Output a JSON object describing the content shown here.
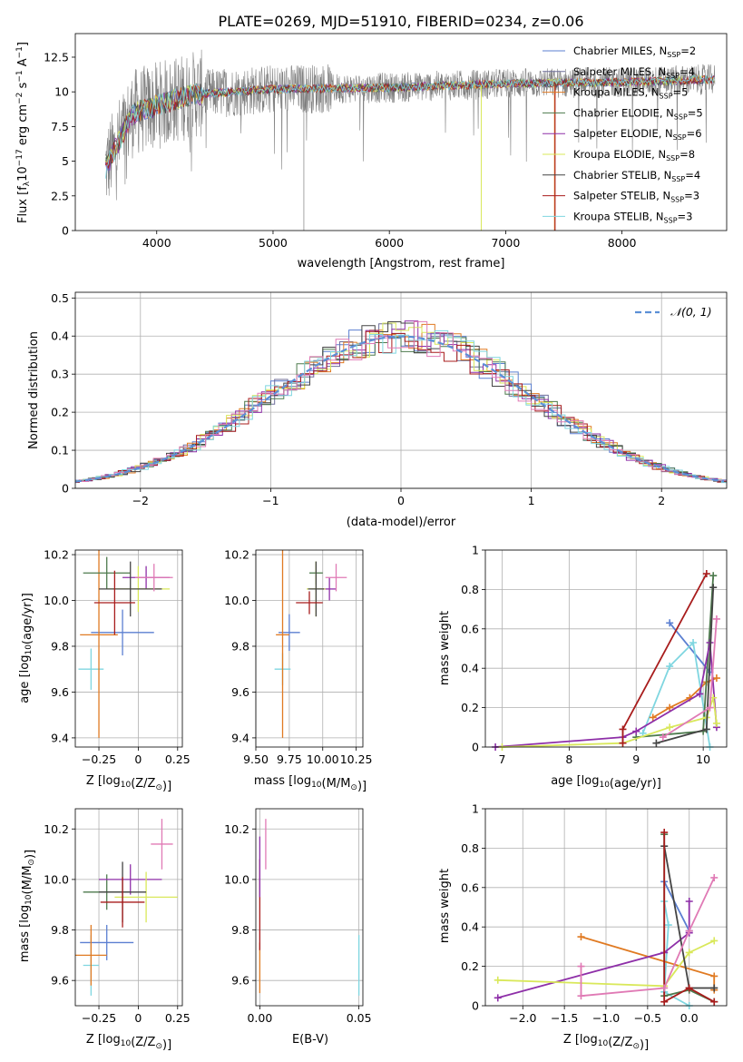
{
  "figure_title": "PLATE=0269, MJD=51910, FIBERID=0234, z=0.06",
  "model_colors": {
    "Chabrier MILES": "#5b7fd1",
    "Salpeter MILES": "#6e6e9a",
    "Kroupa MILES": "#e07a22",
    "Chabrier ELODIE": "#4d7a4d",
    "Salpeter ELODIE": "#8e2fa8",
    "Kroupa ELODIE": "#d9e85a",
    "Chabrier STELIB": "#444444",
    "Salpeter STELIB": "#a81c1c",
    "Kroupa STELIB": "#7fd6e0",
    "Pink": "#e07ab5"
  },
  "chart_data": [
    {
      "id": "spectrum",
      "type": "line",
      "title": "PLATE=0269, MJD=51910, FIBERID=0234, z=0.06",
      "xlabel": "wavelength [Angstrom, rest frame]",
      "ylabel": "Flux [f_λ 10^-17 erg cm^-2 s^-1 A^-1]",
      "xlim": [
        3300,
        8900
      ],
      "ylim": [
        0,
        14.2
      ],
      "xticks": [
        4000,
        5000,
        6000,
        7000,
        8000
      ],
      "yticks": [
        0.0,
        2.5,
        5.0,
        7.5,
        10.0,
        12.5
      ],
      "grid": false,
      "legend_position": "top-right",
      "observed_spectrum": {
        "x_range": [
          3560,
          8800
        ],
        "color": "#808080",
        "mean_curve": [
          [
            3560,
            4.5
          ],
          [
            3800,
            8.5
          ],
          [
            4000,
            9.0
          ],
          [
            4300,
            9.8
          ],
          [
            5000,
            10.2
          ],
          [
            6000,
            10.3
          ],
          [
            7000,
            10.6
          ],
          [
            8000,
            10.7
          ],
          [
            8800,
            10.9
          ]
        ]
      },
      "legend": [
        {
          "label": "Chabrier MILES, N_SSP=2",
          "color": "#5b7fd1"
        },
        {
          "label": "Salpeter MILES, N_SSP=4",
          "color": "#6e6e9a"
        },
        {
          "label": "Kroupa MILES, N_SSP=5",
          "color": "#e07a22"
        },
        {
          "label": "Chabrier ELODIE, N_SSP=5",
          "color": "#4d7a4d"
        },
        {
          "label": "Salpeter ELODIE, N_SSP=6",
          "color": "#8e2fa8"
        },
        {
          "label": "Kroupa ELODIE, N_SSP=8",
          "color": "#d9e85a"
        },
        {
          "label": "Chabrier STELIB, N_SSP=4",
          "color": "#444444"
        },
        {
          "label": "Salpeter STELIB, N_SSP=3",
          "color": "#a81c1c"
        },
        {
          "label": "Kroupa STELIB, N_SSP=3",
          "color": "#7fd6e0"
        }
      ]
    },
    {
      "id": "residuals",
      "type": "line",
      "xlabel": "(data-model)/error",
      "ylabel": "Normed distribution",
      "xlim": [
        -2.5,
        2.5
      ],
      "ylim": [
        0,
        0.515
      ],
      "xticks": [
        -2,
        -1,
        0,
        1,
        2
      ],
      "yticks": [
        0.0,
        0.1,
        0.2,
        0.3,
        0.4,
        0.5
      ],
      "grid": true,
      "legend_position": "top-right",
      "legend": [
        {
          "label": "𝒩(0, 1)",
          "color": "#5b8fd6",
          "style": "dashed"
        }
      ],
      "normal_curve": {
        "mean": 0,
        "sigma": 1
      }
    },
    {
      "id": "age-vs-Z",
      "type": "scatter",
      "xlabel": "Z [log10(Z/Z⊙)]",
      "ylabel": "age [log10(age/yr)]",
      "xlim": [
        -0.4,
        0.28
      ],
      "ylim": [
        9.36,
        10.22
      ],
      "xticks": [
        -0.25,
        0.0,
        0.25
      ],
      "ytick_labels": [
        "9.4",
        "9.6",
        "9.8",
        "10.0",
        "10.2"
      ],
      "yticks": [
        9.4,
        9.6,
        9.8,
        10.0,
        10.2
      ],
      "grid": true,
      "points": [
        {
          "x": -0.1,
          "xerr": 0.2,
          "y": 9.86,
          "yerr": 0.1,
          "color": "#5b7fd1"
        },
        {
          "x": -0.3,
          "xerr": 0.08,
          "y": 9.7,
          "yerr": 0.09,
          "color": "#7fd6e0"
        },
        {
          "x": -0.25,
          "xerr": 0.12,
          "y": 9.85,
          "yerr": 0.45,
          "color": "#e07a22"
        },
        {
          "x": -0.2,
          "xerr": 0.15,
          "y": 10.12,
          "yerr": 0.07,
          "color": "#4d7a4d"
        },
        {
          "x": 0.05,
          "xerr": 0.15,
          "y": 10.1,
          "yerr": 0.05,
          "color": "#8e2fa8"
        },
        {
          "x": 0.0,
          "xerr": 0.2,
          "y": 10.05,
          "yerr": 0.1,
          "color": "#d9e85a"
        },
        {
          "x": -0.05,
          "xerr": 0.2,
          "y": 10.05,
          "yerr": 0.12,
          "color": "#444444"
        },
        {
          "x": -0.15,
          "xerr": 0.13,
          "y": 9.99,
          "yerr": 0.14,
          "color": "#a81c1c"
        },
        {
          "x": 0.1,
          "xerr": 0.12,
          "y": 10.1,
          "yerr": 0.06,
          "color": "#e07ab5"
        }
      ]
    },
    {
      "id": "age-vs-mass",
      "type": "scatter",
      "xlabel": "mass [log10(M/M⊙)]",
      "xlim": [
        9.5,
        10.3
      ],
      "ylim": [
        9.36,
        10.22
      ],
      "xticks": [
        9.5,
        9.75,
        10.0,
        10.25
      ],
      "xtick_labels": [
        "9.50",
        "9.75",
        "10.00",
        "10.25"
      ],
      "yticks": [
        9.4,
        9.6,
        9.8,
        10.0,
        10.2
      ],
      "ytick_labels": [
        "9.4",
        "9.6",
        "9.8",
        "10.0",
        "10.2"
      ],
      "grid": true,
      "points": [
        {
          "x": 9.75,
          "xerr": 0.08,
          "y": 9.86,
          "yerr": 0.08,
          "color": "#5b7fd1"
        },
        {
          "x": 9.7,
          "xerr": 0.06,
          "y": 9.7,
          "yerr": 0.07,
          "color": "#7fd6e0"
        },
        {
          "x": 9.7,
          "xerr": 0.05,
          "y": 9.85,
          "yerr": 0.45,
          "color": "#e07a22"
        },
        {
          "x": 9.95,
          "xerr": 0.05,
          "y": 10.12,
          "yerr": 0.05,
          "color": "#4d7a4d"
        },
        {
          "x": 10.05,
          "xerr": 0.05,
          "y": 10.05,
          "yerr": 0.05,
          "color": "#8e2fa8"
        },
        {
          "x": 9.95,
          "xerr": 0.07,
          "y": 10.05,
          "yerr": 0.12,
          "color": "#d9e85a"
        },
        {
          "x": 9.95,
          "xerr": 0.06,
          "y": 10.05,
          "yerr": 0.12,
          "color": "#444444"
        },
        {
          "x": 9.9,
          "xerr": 0.1,
          "y": 9.99,
          "yerr": 0.05,
          "color": "#a81c1c"
        },
        {
          "x": 10.1,
          "xerr": 0.08,
          "y": 10.1,
          "yerr": 0.06,
          "color": "#e07ab5"
        }
      ]
    },
    {
      "id": "mass-weight-vs-age",
      "type": "line",
      "xlabel": "age [log10(age/yr)]",
      "ylabel": "mass weight",
      "xlim": [
        6.75,
        10.35
      ],
      "ylim": [
        0,
        1.0
      ],
      "xticks": [
        7,
        8,
        9,
        10
      ],
      "yticks": [
        0.0,
        0.2,
        0.4,
        0.6,
        0.8,
        1.0
      ],
      "grid": true,
      "series": [
        {
          "color": "#5b7fd1",
          "points": [
            [
              9.5,
              0.63
            ],
            [
              10.1,
              0.38
            ]
          ]
        },
        {
          "color": "#7fd6e0",
          "points": [
            [
              9.1,
              0.07
            ],
            [
              9.5,
              0.41
            ],
            [
              9.85,
              0.53
            ],
            [
              10.1,
              0.0
            ]
          ]
        },
        {
          "color": "#e07a22",
          "points": [
            [
              9.25,
              0.15
            ],
            [
              9.5,
              0.2
            ],
            [
              9.8,
              0.25
            ],
            [
              10.05,
              0.33
            ],
            [
              10.2,
              0.35
            ]
          ]
        },
        {
          "color": "#4d7a4d",
          "points": [
            [
              9.0,
              0.05
            ],
            [
              10.0,
              0.08
            ],
            [
              10.15,
              0.87
            ]
          ]
        },
        {
          "color": "#8e2fa8",
          "points": [
            [
              6.9,
              0.0
            ],
            [
              8.8,
              0.05
            ],
            [
              9.0,
              0.08
            ],
            [
              9.95,
              0.27
            ],
            [
              10.1,
              0.53
            ],
            [
              10.2,
              0.1
            ]
          ]
        },
        {
          "color": "#d9e85a",
          "points": [
            [
              7.0,
              0.0
            ],
            [
              8.8,
              0.02
            ],
            [
              9.5,
              0.1
            ],
            [
              10.05,
              0.15
            ],
            [
              10.15,
              0.25
            ],
            [
              10.2,
              0.12
            ]
          ]
        },
        {
          "color": "#444444",
          "points": [
            [
              9.3,
              0.02
            ],
            [
              10.05,
              0.09
            ],
            [
              10.15,
              0.81
            ]
          ]
        },
        {
          "color": "#a81c1c",
          "points": [
            [
              8.8,
              0.02
            ],
            [
              8.8,
              0.09
            ],
            [
              10.05,
              0.88
            ]
          ]
        },
        {
          "color": "#e07ab5",
          "points": [
            [
              9.4,
              0.05
            ],
            [
              10.1,
              0.2
            ],
            [
              10.2,
              0.65
            ]
          ]
        }
      ]
    },
    {
      "id": "mass-vs-Z",
      "type": "scatter",
      "xlabel": "Z [log10(Z/Z⊙)]",
      "ylabel": "mass [log10(M/M⊙)]",
      "xlim": [
        -0.4,
        0.28
      ],
      "ylim": [
        9.5,
        10.28
      ],
      "xticks": [
        -0.25,
        0.0,
        0.25
      ],
      "yticks": [
        9.6,
        9.8,
        10.0,
        10.2
      ],
      "ytick_labels": [
        "9.6",
        "9.8",
        "10.0",
        "10.2"
      ],
      "grid": true,
      "points": [
        {
          "x": -0.2,
          "xerr": 0.17,
          "y": 9.75,
          "yerr": 0.07,
          "color": "#5b7fd1"
        },
        {
          "x": -0.3,
          "xerr": 0.05,
          "y": 9.66,
          "yerr": 0.12,
          "color": "#7fd6e0"
        },
        {
          "x": -0.3,
          "xerr": 0.1,
          "y": 9.7,
          "yerr": 0.12,
          "color": "#e07a22"
        },
        {
          "x": -0.2,
          "xerr": 0.15,
          "y": 9.95,
          "yerr": 0.07,
          "color": "#4d7a4d"
        },
        {
          "x": -0.05,
          "xerr": 0.2,
          "y": 10.0,
          "yerr": 0.06,
          "color": "#8e2fa8"
        },
        {
          "x": 0.05,
          "xerr": 0.2,
          "y": 9.93,
          "yerr": 0.1,
          "color": "#d9e85a"
        },
        {
          "x": -0.1,
          "xerr": 0.15,
          "y": 9.95,
          "yerr": 0.12,
          "color": "#444444"
        },
        {
          "x": -0.1,
          "xerr": 0.14,
          "y": 9.91,
          "yerr": 0.1,
          "color": "#a81c1c"
        },
        {
          "x": 0.15,
          "xerr": 0.07,
          "y": 10.14,
          "yerr": 0.1,
          "color": "#e07ab5"
        }
      ]
    },
    {
      "id": "mass-vs-EBV",
      "type": "scatter",
      "xlabel": "E(B-V)",
      "xlim": [
        -0.002,
        0.052
      ],
      "ylim": [
        9.5,
        10.28
      ],
      "xticks": [
        0.0,
        0.05
      ],
      "xtick_labels": [
        "0.00",
        "0.05"
      ],
      "yticks": [
        9.6,
        9.8,
        10.0,
        10.2
      ],
      "ytick_labels": [
        "9.6",
        "9.8",
        "10.0",
        "10.2"
      ],
      "grid": true,
      "points": [
        {
          "x": 0.0,
          "y": 9.65,
          "yerr": 0.1,
          "color": "#e07a22"
        },
        {
          "x": 0.0,
          "y": 9.9,
          "yerr": 0.18,
          "color": "#a81c1c"
        },
        {
          "x": 0.0,
          "y": 10.05,
          "yerr": 0.12,
          "color": "#8e2fa8"
        },
        {
          "x": 0.003,
          "y": 10.14,
          "yerr": 0.1,
          "color": "#e07ab5"
        },
        {
          "x": 0.05,
          "y": 9.66,
          "yerr": 0.12,
          "color": "#7fd6e0"
        }
      ]
    },
    {
      "id": "mass-weight-vs-Z",
      "type": "line",
      "xlabel": "Z [log10(Z/Z⊙)]",
      "ylabel": "mass weight",
      "xlim": [
        -2.45,
        0.45
      ],
      "ylim": [
        0,
        1.0
      ],
      "xticks": [
        -2.0,
        -1.5,
        -1.0,
        -0.5,
        0.0
      ],
      "xtick_labels": [
        "−2.0",
        "−1.5",
        "−1.0",
        "−0.5",
        "0.0"
      ],
      "yticks": [
        0.0,
        0.2,
        0.4,
        0.6,
        0.8,
        1.0
      ],
      "grid": true,
      "series": [
        {
          "color": "#5b7fd1",
          "points": [
            [
              -0.3,
              0.63
            ],
            [
              0.0,
              0.38
            ]
          ]
        },
        {
          "color": "#7fd6e0",
          "points": [
            [
              -0.3,
              0.53
            ],
            [
              -0.25,
              0.41
            ],
            [
              -0.3,
              0.07
            ],
            [
              0.0,
              0.0
            ]
          ]
        },
        {
          "color": "#e07a22",
          "points": [
            [
              -1.3,
              0.35
            ],
            [
              0.3,
              0.15
            ],
            [
              0.3,
              0.08
            ]
          ]
        },
        {
          "color": "#4d7a4d",
          "points": [
            [
              -0.3,
              0.87
            ],
            [
              -0.3,
              0.05
            ],
            [
              0.0,
              0.08
            ],
            [
              0.3,
              0.02
            ]
          ]
        },
        {
          "color": "#8e2fa8",
          "points": [
            [
              -2.3,
              0.04
            ],
            [
              -0.3,
              0.27
            ],
            [
              0.0,
              0.37
            ],
            [
              0.0,
              0.53
            ]
          ]
        },
        {
          "color": "#d9e85a",
          "points": [
            [
              -2.3,
              0.13
            ],
            [
              -0.3,
              0.1
            ],
            [
              0.0,
              0.27
            ],
            [
              0.3,
              0.33
            ]
          ]
        },
        {
          "color": "#444444",
          "points": [
            [
              -0.3,
              0.81
            ],
            [
              0.0,
              0.09
            ],
            [
              0.3,
              0.09
            ]
          ]
        },
        {
          "color": "#a81c1c",
          "points": [
            [
              -0.3,
              0.88
            ],
            [
              -0.3,
              0.02
            ],
            [
              0.0,
              0.09
            ],
            [
              0.3,
              0.02
            ]
          ]
        },
        {
          "color": "#e07ab5",
          "points": [
            [
              -1.3,
              0.2
            ],
            [
              -1.3,
              0.05
            ],
            [
              -0.3,
              0.09
            ],
            [
              0.0,
              0.38
            ],
            [
              0.3,
              0.65
            ]
          ]
        }
      ]
    }
  ]
}
